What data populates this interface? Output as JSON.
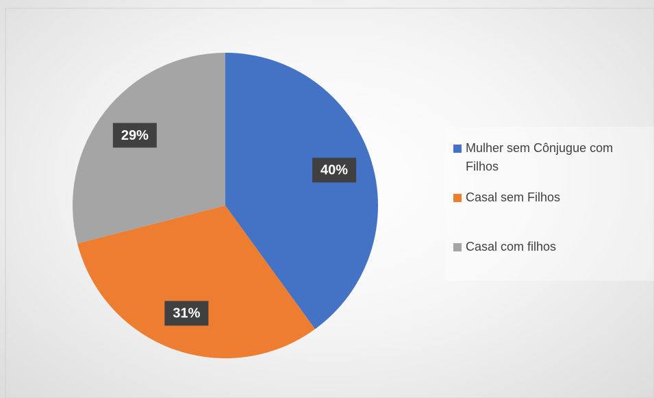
{
  "chart_data": {
    "type": "pie",
    "categories": [
      "Mulher sem Cônjugue com Filhos",
      "Casal sem Filhos",
      "Casal com filhos"
    ],
    "values": [
      40,
      31,
      29
    ],
    "value_labels": [
      "40%",
      "31%",
      "29%"
    ],
    "colors": [
      "#4472c4",
      "#ed7d31",
      "#a5a5a5"
    ],
    "legend": "right"
  }
}
